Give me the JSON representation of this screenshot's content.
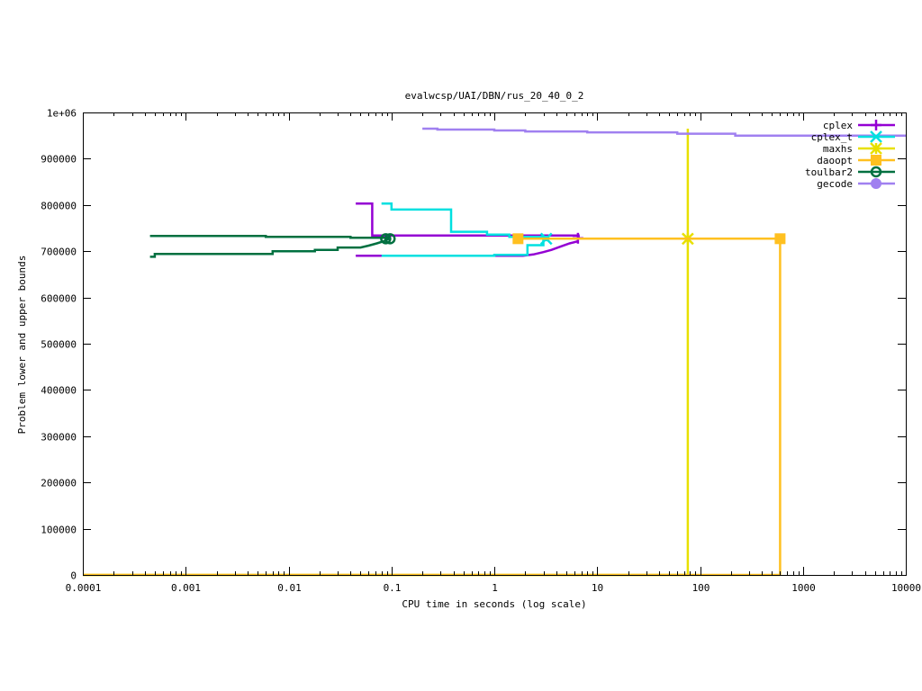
{
  "chart_data": {
    "type": "line",
    "title": "evalwcsp/UAI/DBN/rus_20_40_0_2",
    "xlabel": "CPU time in seconds (log scale)",
    "ylabel": "Problem lower and upper bounds",
    "xscale": "log",
    "xlim": [
      0.0001,
      10000
    ],
    "ylim": [
      0,
      1000000
    ],
    "grid": false,
    "legend_position": "top-right",
    "x_ticks": [
      {
        "value": 0.0001,
        "label": "0.0001"
      },
      {
        "value": 0.001,
        "label": "0.001"
      },
      {
        "value": 0.01,
        "label": "0.01"
      },
      {
        "value": 0.1,
        "label": "0.1"
      },
      {
        "value": 1,
        "label": "1"
      },
      {
        "value": 10,
        "label": "10"
      },
      {
        "value": 100,
        "label": "100"
      },
      {
        "value": 1000,
        "label": "1000"
      },
      {
        "value": 10000,
        "label": "10000"
      }
    ],
    "y_ticks": [
      {
        "value": 0,
        "label": "0"
      },
      {
        "value": 100000,
        "label": "100000"
      },
      {
        "value": 200000,
        "label": "200000"
      },
      {
        "value": 300000,
        "label": "300000"
      },
      {
        "value": 400000,
        "label": "400000"
      },
      {
        "value": 500000,
        "label": "500000"
      },
      {
        "value": 600000,
        "label": "600000"
      },
      {
        "value": 700000,
        "label": "700000"
      },
      {
        "value": 800000,
        "label": "800000"
      },
      {
        "value": 900000,
        "label": "900000"
      },
      {
        "value": 1000000,
        "label": "1e+06"
      }
    ],
    "series": [
      {
        "name": "cplex",
        "color": "#9400d3",
        "marker": "plus",
        "lines": [
          [
            [
              0.045,
              803000
            ],
            [
              0.065,
              803000
            ],
            [
              0.065,
              734000
            ],
            [
              6.6,
              734000
            ],
            [
              6.6,
              728000
            ]
          ],
          [
            [
              0.045,
              690000
            ],
            [
              1.9,
              690000
            ],
            [
              2.4,
              693000
            ],
            [
              3.0,
              698000
            ],
            [
              3.6,
              703000
            ],
            [
              4.4,
              710000
            ],
            [
              5.4,
              717000
            ],
            [
              6.6,
              722000
            ]
          ]
        ],
        "markers": [
          [
            6.5,
            728000
          ]
        ]
      },
      {
        "name": "cplex_t",
        "color": "#00e0e0",
        "marker": "cross",
        "lines": [
          [
            [
              0.08,
              803000
            ],
            [
              0.1,
              803000
            ],
            [
              0.1,
              790000
            ],
            [
              0.38,
              790000
            ],
            [
              0.38,
              742000
            ],
            [
              0.85,
              742000
            ],
            [
              0.85,
              736000
            ],
            [
              1.4,
              736000
            ],
            [
              1.4,
              731000
            ],
            [
              3.3,
              731000
            ]
          ],
          [
            [
              0.08,
              690000
            ],
            [
              1.0,
              690000
            ],
            [
              1.0,
              692000
            ],
            [
              2.1,
              692000
            ],
            [
              2.1,
              713000
            ],
            [
              3.0,
              713000
            ],
            [
              3.0,
              724000
            ],
            [
              3.3,
              724000
            ]
          ]
        ],
        "markers": [
          [
            3.2,
            727000
          ]
        ]
      },
      {
        "name": "maxhs",
        "color": "#e8e000",
        "marker": "star",
        "lines": [
          [
            [
              0.0001,
              0
            ],
            [
              76,
              0
            ],
            [
              76,
              965000
            ]
          ],
          [
            [
              76,
              727000
            ],
            [
              76,
              727000
            ]
          ]
        ],
        "markers": [
          [
            76,
            727000
          ]
        ]
      },
      {
        "name": "daoopt",
        "color": "#ffc020",
        "marker": "square",
        "lines": [
          [
            [
              1.7,
              727000
            ],
            [
              600,
              727000
            ],
            [
              600,
              0
            ]
          ],
          [
            [
              0.0001,
              0
            ],
            [
              600,
              0
            ]
          ]
        ],
        "markers": [
          [
            1.7,
            727000
          ],
          [
            600,
            727000
          ]
        ]
      },
      {
        "name": "toulbar2",
        "color": "#007040",
        "marker": "circle-open",
        "lines": [
          [
            [
              0.00045,
              733000
            ],
            [
              0.006,
              733000
            ],
            [
              0.006,
              731000
            ],
            [
              0.04,
              731000
            ],
            [
              0.04,
              729000
            ],
            [
              0.095,
              729000
            ]
          ],
          [
            [
              0.00045,
              688000
            ],
            [
              0.0005,
              688000
            ],
            [
              0.0005,
              694000
            ],
            [
              0.007,
              694000
            ],
            [
              0.007,
              700000
            ],
            [
              0.018,
              700000
            ],
            [
              0.018,
              703000
            ],
            [
              0.03,
              703000
            ],
            [
              0.03,
              708000
            ],
            [
              0.05,
              708000
            ],
            [
              0.06,
              712000
            ],
            [
              0.072,
              717000
            ],
            [
              0.085,
              722000
            ],
            [
              0.095,
              727000
            ]
          ]
        ],
        "markers": [
          [
            0.088,
            727000
          ],
          [
            0.097,
            727000
          ]
        ]
      },
      {
        "name": "gecode",
        "color": "#a080f0",
        "marker": "circle",
        "lines": [
          [
            [
              0.2,
              965000
            ],
            [
              0.28,
              965000
            ],
            [
              0.28,
              963000
            ],
            [
              1.0,
              963000
            ],
            [
              1.0,
              961000
            ],
            [
              2.0,
              961000
            ],
            [
              2.0,
              959000
            ],
            [
              8.0,
              959000
            ],
            [
              8.0,
              957000
            ],
            [
              60.0,
              957000
            ],
            [
              60.0,
              954000
            ],
            [
              220,
              954000
            ],
            [
              220,
              950000
            ],
            [
              10000,
              950000
            ]
          ]
        ],
        "markers": []
      }
    ]
  }
}
